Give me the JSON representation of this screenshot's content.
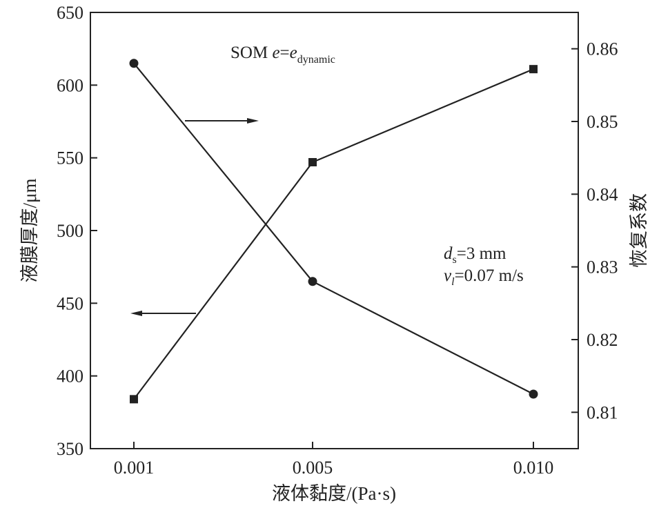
{
  "chart_data": {
    "type": "line",
    "title": "",
    "categories": [
      "0.001",
      "0.005",
      "0.010"
    ],
    "xlabel": "液体黏度/(Pa·s)",
    "ylabel_left": "液膜厚度/μm",
    "ylabel_right": "恢复系数",
    "ylim_left": [
      350,
      650
    ],
    "yticks_left": [
      350,
      400,
      450,
      500,
      550,
      600,
      650
    ],
    "ylim_right": [
      0.805,
      0.865
    ],
    "yticks_right": [
      0.81,
      0.82,
      0.83,
      0.84,
      0.85,
      0.86
    ],
    "series": [
      {
        "name": "液膜厚度",
        "axis": "left",
        "marker": "square",
        "values": [
          384,
          547,
          611
        ]
      },
      {
        "name": "恢复系数",
        "axis": "right",
        "marker": "circle",
        "values": [
          0.858,
          0.828,
          0.8125
        ]
      }
    ],
    "annotations": {
      "model_prefix": "SOM ",
      "model_e": "e",
      "model_eq": "=",
      "model_e2": "e",
      "model_sub": "dynamic",
      "ds_d": "d",
      "ds_sub": "s",
      "ds_value": "=3 mm",
      "vl_v": "v",
      "vl_sub": "l",
      "vl_value": "=0.07 m/s"
    },
    "arrows": {
      "right_arrow": "points to right axis (恢复系数)",
      "left_arrow": "points to left axis (液膜厚度)"
    }
  }
}
